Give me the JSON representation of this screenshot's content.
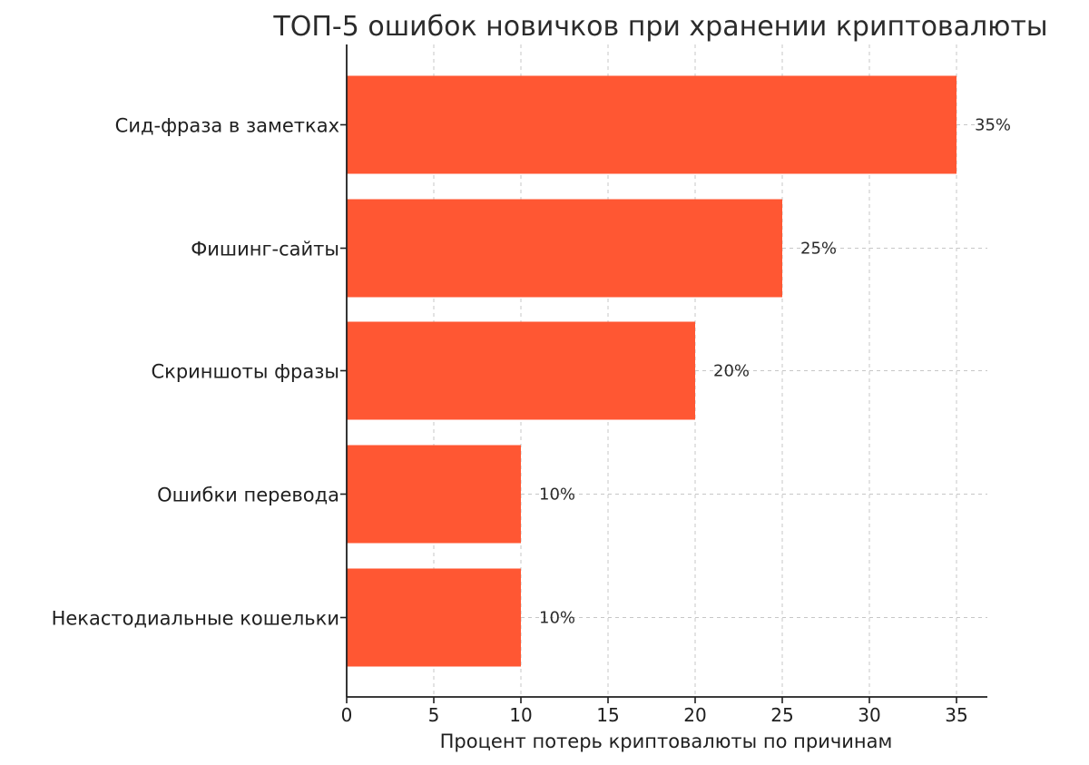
{
  "chart_data": {
    "type": "bar",
    "orientation": "horizontal",
    "title": "ТОП-5 ошибок новичков при хранении криптовалюты",
    "xlabel": "Процент потерь криптовалюты по причинам",
    "ylabel": "",
    "categories": [
      "Сид-фраза в заметках",
      "Фишинг-сайты",
      "Скриншоты фразы",
      "Ошибки перевода",
      "Некастодиальные кошельки"
    ],
    "values": [
      35,
      25,
      20,
      10,
      10
    ],
    "value_labels": [
      "35%",
      "25%",
      "20%",
      "10%",
      "10%"
    ],
    "xlim": [
      0,
      36.8
    ],
    "xticks": [
      0,
      5,
      10,
      15,
      20,
      25,
      30,
      35
    ],
    "xtick_labels": [
      "0",
      "5",
      "10",
      "15",
      "20",
      "25",
      "30",
      "35"
    ],
    "grid": true,
    "bar_color": "#ff5733",
    "grid_color": "#c7c7c7",
    "axis_color": "#1f1f1f"
  }
}
